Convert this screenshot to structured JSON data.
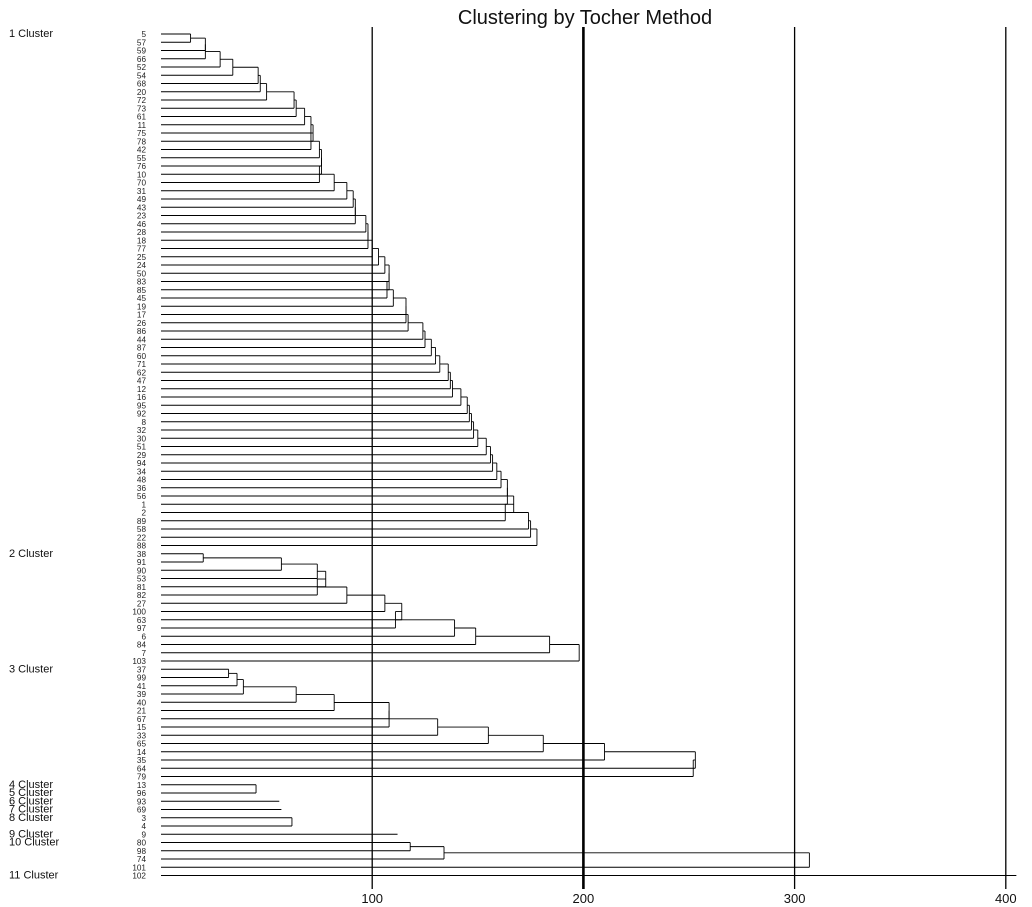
{
  "chart_data": {
    "type": "dendrogram",
    "title": "Clustering by Tocher Method",
    "xlim": [
      0,
      400
    ],
    "x_ticks": [
      100,
      200,
      300,
      400
    ],
    "reference_lines": [
      100,
      200,
      300,
      400
    ],
    "clusters": [
      {
        "label": "1 Cluster",
        "leaves": [
          "5",
          "57",
          "59",
          "66",
          "52",
          "54",
          "68",
          "20",
          "72",
          "73",
          "61",
          "11",
          "75",
          "78",
          "42",
          "55",
          "76",
          "10",
          "70",
          "31",
          "49",
          "43",
          "23",
          "46",
          "28",
          "18",
          "77",
          "25",
          "24",
          "50",
          "83",
          "85",
          "45",
          "19",
          "17",
          "26",
          "86",
          "44",
          "87",
          "60",
          "71",
          "62",
          "47",
          "12",
          "16",
          "95",
          "92",
          "8",
          "32",
          "30",
          "51",
          "29",
          "94",
          "34",
          "48",
          "36",
          "56",
          "1",
          "2",
          "89",
          "58",
          "22",
          "88"
        ],
        "heights": [
          14,
          21,
          21,
          28,
          34,
          46,
          47,
          50,
          63,
          64,
          68,
          71,
          72,
          71,
          75,
          76,
          76,
          75,
          82,
          88,
          91,
          92,
          92,
          97,
          98,
          98,
          100,
          103,
          106,
          108,
          108,
          107,
          110,
          116,
          116,
          117,
          124,
          125,
          128,
          130,
          132,
          136,
          137,
          138,
          142,
          145,
          146,
          147,
          148,
          150,
          154,
          156,
          157,
          159,
          161,
          164,
          164,
          167,
          163,
          174,
          175,
          178
        ]
      },
      {
        "label": "2 Cluster",
        "leaves": [
          "38",
          "91",
          "90",
          "53",
          "81",
          "82",
          "27",
          "100",
          "63",
          "97",
          "6",
          "84",
          "7",
          "103"
        ],
        "heights": [
          20,
          57,
          74,
          78,
          74,
          88,
          106,
          114,
          111,
          139,
          149,
          184,
          198
        ]
      },
      {
        "label": "3 Cluster",
        "leaves": [
          "37",
          "99",
          "41",
          "39",
          "40",
          "21",
          "67",
          "15",
          "33",
          "65",
          "14",
          "35",
          "64",
          "79"
        ],
        "heights": [
          32,
          36,
          39,
          64,
          82,
          108,
          108,
          131,
          155,
          181,
          210,
          253,
          252
        ]
      },
      {
        "label": "4 Cluster",
        "leaves": [
          "13",
          "96"
        ],
        "heights": [
          45
        ]
      },
      {
        "label": "5 Cluster",
        "leaves": [],
        "heights": []
      },
      {
        "label": "6 Cluster",
        "leaves": [
          "93"
        ],
        "heights": [
          56
        ]
      },
      {
        "label": "7 Cluster",
        "leaves": [
          "69"
        ],
        "heights": [
          57
        ]
      },
      {
        "label": "8 Cluster",
        "leaves": [
          "3",
          "4"
        ],
        "heights": [
          62
        ]
      },
      {
        "label": "9 Cluster",
        "leaves": [
          "9"
        ],
        "heights": [
          112
        ]
      },
      {
        "label": "10 Cluster",
        "leaves": [
          "80",
          "98",
          "74",
          "101"
        ],
        "heights": [
          118,
          134,
          307
        ]
      },
      {
        "label": "11 Cluster",
        "leaves": [
          "102"
        ],
        "heights": [
          405
        ]
      }
    ]
  }
}
